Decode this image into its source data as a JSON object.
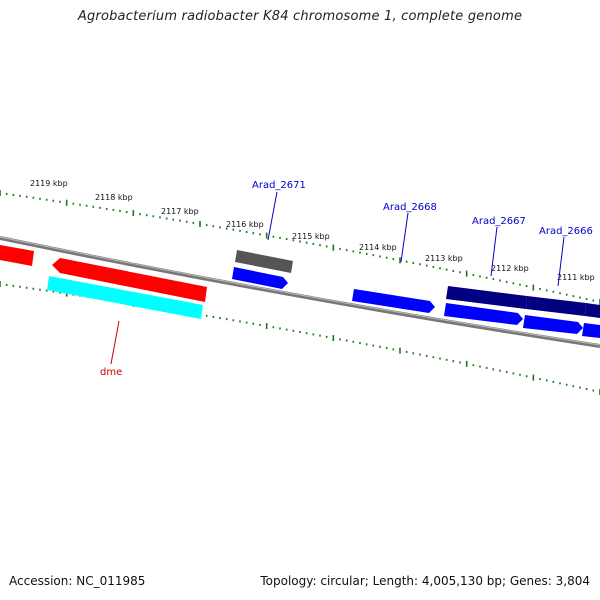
{
  "title": "Agrobacterium radiobacter K84 chromosome 1, complete genome",
  "footer": {
    "accession": "Accession: NC_011985",
    "topology": "Topology: circular; Length: 4,005,130 bp; Genes: 3,804"
  },
  "colors": {
    "backbone": "#888888",
    "tick": "#1a7a1a",
    "gene_red": "#ff0000",
    "gene_cyan": "#00ffff",
    "gene_blue": "#0000ff",
    "gene_navy": "#000080",
    "gene_gray": "#606060",
    "label_blue": "#0000cc",
    "label_red": "#cc0000"
  },
  "kbp_labels": [
    "2119 kbp",
    "2118 kbp",
    "2117 kbp",
    "2116 kbp",
    "2115 kbp",
    "2114 kbp",
    "2113 kbp",
    "2112 kbp",
    "2111 kbp"
  ],
  "gene_labels": [
    {
      "text": "Arad_2671",
      "color": "blue"
    },
    {
      "text": "Arad_2668",
      "color": "blue"
    },
    {
      "text": "Arad_2667",
      "color": "blue"
    },
    {
      "text": "Arad_2666",
      "color": "blue"
    },
    {
      "text": "dme",
      "color": "red"
    }
  ]
}
